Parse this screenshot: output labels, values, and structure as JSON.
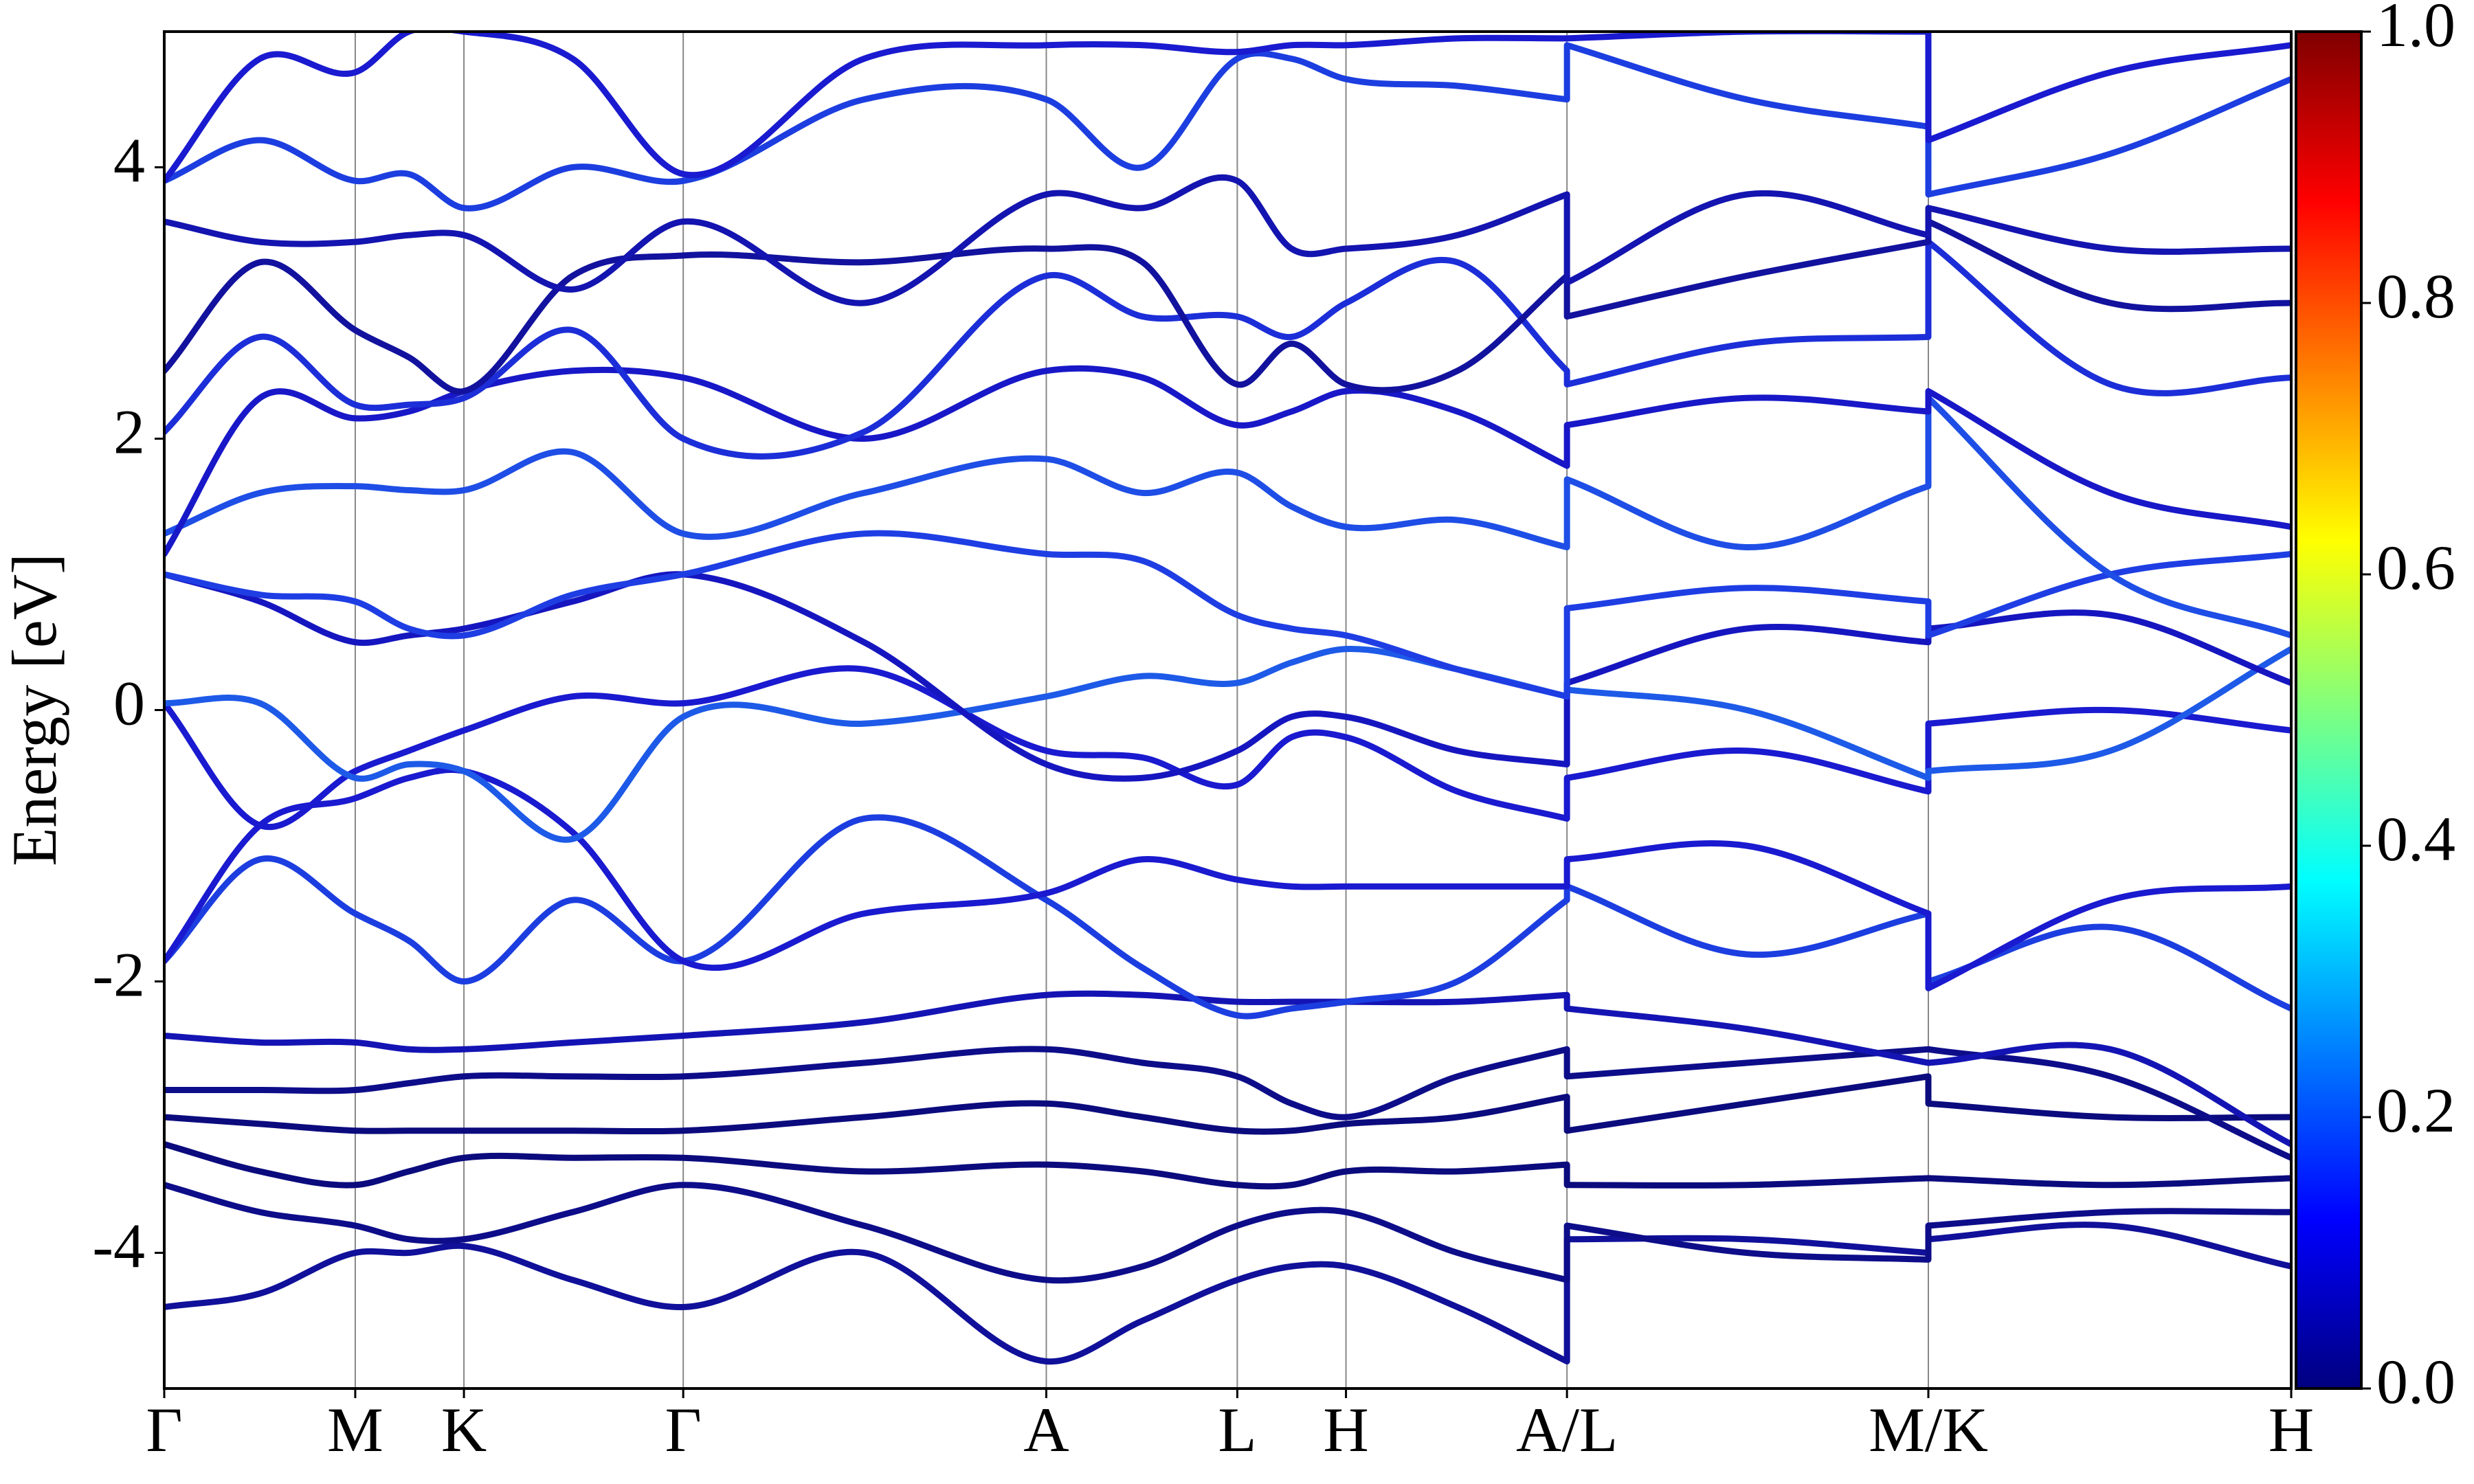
{
  "chart_data": {
    "type": "line",
    "y_label": "Energy [eV]",
    "x": [
      0,
      0.045,
      0.0898,
      0.115,
      0.1409,
      0.192,
      0.244,
      0.329,
      0.4147,
      0.46,
      0.5045,
      0.53,
      0.5556,
      0.608,
      0.6595,
      0.6595,
      0.744,
      0.8294,
      0.8294,
      0.915,
      1.0
    ],
    "xlim": [
      0,
      1
    ],
    "xticks": [
      {
        "value": 0,
        "label": "Γ"
      },
      {
        "value": 0.0898,
        "label": "M"
      },
      {
        "value": 0.1409,
        "label": "K"
      },
      {
        "value": 0.244,
        "label": "Γ"
      },
      {
        "value": 0.4147,
        "label": "A"
      },
      {
        "value": 0.5045,
        "label": "L"
      },
      {
        "value": 0.5556,
        "label": "H"
      },
      {
        "value": 0.6595,
        "label": "A/L"
      },
      {
        "value": 0.8294,
        "label": "M/K"
      },
      {
        "value": 1.0,
        "label": "H"
      }
    ],
    "ylim": [
      -5,
      5
    ],
    "yticks": [
      -4,
      -2,
      0,
      2,
      4
    ],
    "grid": "x",
    "series": [
      {
        "color": "#10109a",
        "values": [
          -4.4,
          -4.3,
          -4.0,
          -4.0,
          -3.95,
          -4.2,
          -4.4,
          -4.0,
          -4.8,
          -4.5,
          -4.2,
          -4.1,
          -4.1,
          -4.4,
          -4.8,
          -3.9,
          -3.9,
          -4.0,
          -3.9,
          -3.8,
          -4.1
        ]
      },
      {
        "color": "#0d0d8a",
        "values": [
          -3.5,
          -3.7,
          -3.8,
          -3.9,
          -3.9,
          -3.7,
          -3.5,
          -3.8,
          -4.2,
          -4.1,
          -3.8,
          -3.7,
          -3.7,
          -4.0,
          -4.2,
          -3.8,
          -4.0,
          -4.05,
          -3.8,
          -3.7,
          -3.7
        ]
      },
      {
        "color": "#0b0b7e",
        "values": [
          -3.2,
          -3.4,
          -3.5,
          -3.4,
          -3.3,
          -3.3,
          -3.3,
          -3.4,
          -3.35,
          -3.4,
          -3.5,
          -3.5,
          -3.4,
          -3.4,
          -3.35,
          -3.5,
          -3.5,
          -3.45,
          -3.45,
          -3.5,
          -3.45
        ]
      },
      {
        "color": "#0b0b7e",
        "values": [
          -3.0,
          -3.05,
          -3.1,
          -3.1,
          -3.1,
          -3.1,
          -3.1,
          -3.0,
          -2.9,
          -3.0,
          -3.1,
          -3.1,
          -3.05,
          -3.0,
          -2.85,
          -3.1,
          -2.9,
          -2.7,
          -2.9,
          -3.0,
          -3.0
        ]
      },
      {
        "color": "#0d0d8a",
        "values": [
          -2.8,
          -2.8,
          -2.8,
          -2.75,
          -2.7,
          -2.7,
          -2.7,
          -2.6,
          -2.5,
          -2.6,
          -2.7,
          -2.9,
          -3.0,
          -2.7,
          -2.5,
          -2.7,
          -2.6,
          -2.5,
          -2.5,
          -2.7,
          -3.3
        ]
      },
      {
        "color": "#1414b4",
        "values": [
          -2.4,
          -2.45,
          -2.45,
          -2.5,
          -2.5,
          -2.45,
          -2.4,
          -2.3,
          -2.1,
          -2.1,
          -2.15,
          -2.15,
          -2.15,
          -2.15,
          -2.1,
          -2.2,
          -2.35,
          -2.6,
          -2.6,
          -2.5,
          -3.2
        ]
      },
      {
        "color": "#1c3ee0",
        "values": [
          -1.85,
          -1.1,
          -1.5,
          -1.7,
          -2.0,
          -1.4,
          -1.85,
          -0.8,
          -1.4,
          -1.9,
          -2.25,
          -2.2,
          -2.15,
          -2.0,
          -1.4,
          -1.3,
          -1.8,
          -1.5,
          -2.0,
          -1.6,
          -2.2
        ]
      },
      {
        "color": "#1a1ad0",
        "values": [
          -1.85,
          -0.85,
          -0.65,
          -0.5,
          -0.45,
          -0.9,
          -1.85,
          -1.5,
          -1.35,
          -1.1,
          -1.25,
          -1.3,
          -1.3,
          -1.3,
          -1.3,
          -1.1,
          -1.0,
          -1.5,
          -2.05,
          -1.4,
          -1.3
        ]
      },
      {
        "color": "#1a1ad0",
        "values": [
          0.05,
          -0.85,
          -0.45,
          -0.3,
          -0.15,
          0.1,
          0.05,
          0.3,
          -0.3,
          -0.35,
          -0.55,
          -0.2,
          -0.2,
          -0.6,
          -0.8,
          -0.5,
          -0.3,
          -0.6,
          -0.1,
          0.0,
          -0.15
        ]
      },
      {
        "color": "#1e5ae8",
        "values": [
          0.05,
          0.05,
          -0.5,
          -0.4,
          -0.45,
          -0.95,
          -0.05,
          -0.1,
          0.1,
          0.25,
          0.2,
          0.35,
          0.45,
          0.3,
          0.1,
          0.15,
          0.0,
          -0.5,
          -0.45,
          -0.3,
          0.45
        ]
      },
      {
        "color": "#1616c0",
        "values": [
          1.0,
          0.8,
          0.5,
          0.55,
          0.6,
          0.8,
          1.0,
          0.5,
          -0.4,
          -0.5,
          -0.3,
          -0.05,
          -0.05,
          -0.3,
          -0.4,
          0.2,
          0.6,
          0.5,
          0.6,
          0.7,
          0.2
        ]
      },
      {
        "color": "#1e3ee4",
        "values": [
          1.0,
          0.85,
          0.8,
          0.6,
          0.55,
          0.85,
          1.0,
          1.3,
          1.15,
          1.1,
          0.7,
          0.6,
          0.55,
          0.3,
          0.1,
          0.75,
          0.9,
          0.8,
          0.55,
          1.0,
          1.15
        ]
      },
      {
        "color": "#1e4ee6",
        "values": [
          1.3,
          1.6,
          1.65,
          1.62,
          1.62,
          1.9,
          1.3,
          1.6,
          1.85,
          1.6,
          1.75,
          1.5,
          1.35,
          1.4,
          1.2,
          1.7,
          1.2,
          1.65,
          2.3,
          1.0,
          0.55
        ]
      },
      {
        "color": "#1818c8",
        "values": [
          1.15,
          2.3,
          2.15,
          2.2,
          2.35,
          2.5,
          2.45,
          2.0,
          2.5,
          2.45,
          2.1,
          2.2,
          2.35,
          2.2,
          1.8,
          2.1,
          2.3,
          2.2,
          2.35,
          1.6,
          1.35
        ]
      },
      {
        "color": "#1c2ed8",
        "values": [
          2.05,
          2.75,
          2.25,
          2.25,
          2.3,
          2.8,
          2.0,
          2.05,
          3.2,
          2.9,
          2.9,
          2.75,
          3.0,
          3.3,
          2.5,
          2.4,
          2.7,
          2.75,
          3.45,
          2.4,
          2.45
        ]
      },
      {
        "color": "#12129e",
        "values": [
          2.5,
          3.3,
          2.8,
          2.6,
          2.35,
          3.2,
          3.35,
          3.3,
          3.4,
          3.3,
          2.4,
          2.7,
          2.4,
          2.5,
          3.2,
          2.9,
          3.2,
          3.45,
          3.6,
          3.0,
          3.0
        ]
      },
      {
        "color": "#1414b0",
        "values": [
          3.6,
          3.45,
          3.45,
          3.5,
          3.5,
          3.1,
          3.6,
          3.0,
          3.8,
          3.7,
          3.9,
          3.4,
          3.4,
          3.5,
          3.8,
          3.15,
          3.8,
          3.5,
          3.7,
          3.4,
          3.4
        ]
      },
      {
        "color": "#1c3ee0",
        "values": [
          3.9,
          4.2,
          3.9,
          3.95,
          3.7,
          4.0,
          3.9,
          4.5,
          4.5,
          4.0,
          4.8,
          4.8,
          4.65,
          4.6,
          4.5,
          4.9,
          4.5,
          4.3,
          3.8,
          4.1,
          4.65
        ]
      },
      {
        "color": "#1a1ad0",
        "values": [
          3.9,
          4.8,
          4.7,
          5.0,
          5.0,
          4.8,
          3.95,
          4.8,
          4.9,
          4.9,
          4.85,
          4.9,
          4.9,
          4.95,
          4.95,
          4.95,
          5.0,
          5.0,
          4.2,
          4.7,
          4.9
        ]
      }
    ],
    "colorbar": {
      "colormap": "jet",
      "lim": [
        0,
        1
      ],
      "ticks": [
        {
          "value": 0,
          "label": "0.0"
        },
        {
          "value": 0.2,
          "label": "0.2"
        },
        {
          "value": 0.4,
          "label": "0.4"
        },
        {
          "value": 0.6,
          "label": "0.6"
        },
        {
          "value": 0.8,
          "label": "0.8"
        },
        {
          "value": 1.0,
          "label": "1.0"
        }
      ]
    }
  }
}
